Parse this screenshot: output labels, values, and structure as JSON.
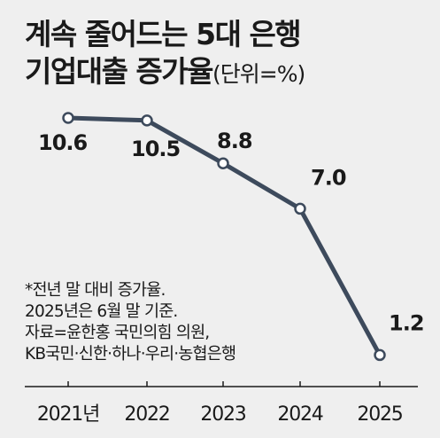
{
  "chart_data": {
    "type": "line",
    "title_line1": "계속 줄어드는 5대 은행",
    "title_line2": "기업대출 증가율",
    "unit": "(단위=%)",
    "categories": [
      "2021년",
      "2022",
      "2023",
      "2024",
      "2025"
    ],
    "series": [
      {
        "values": [
          10.6,
          10.5,
          8.8,
          7.0,
          1.2
        ],
        "labels": [
          "10.6",
          "10.5",
          "8.8",
          "7.0",
          "1.2"
        ]
      }
    ],
    "line_color": "#3d4a5c",
    "grid": false,
    "legend": "none",
    "notes": [
      "*전년 말 대비 증가율.",
      "2025년은 6월 말 기준.",
      "자료=윤한홍 국민의힘 의원,",
      "KB국민·신한·하나·우리·농협은행"
    ]
  }
}
